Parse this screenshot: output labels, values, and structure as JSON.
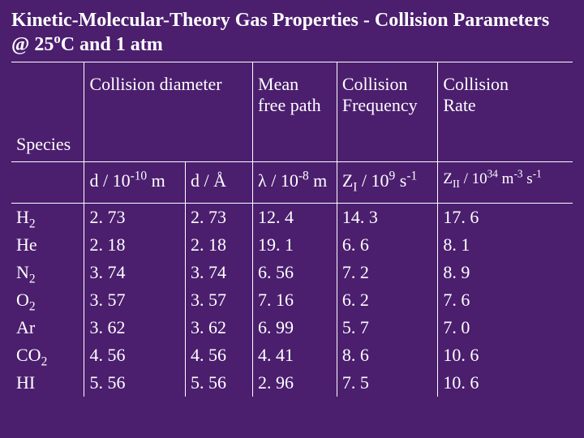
{
  "background_color": "#4b1e6e",
  "text_color": "#ffffff",
  "border_color": "#ffffff",
  "title_line1": "Kinetic-Molecular-Theory Gas Properties - Collision Parameters",
  "title_line2_prefix": "@ 25",
  "title_line2_suffix": "C and 1 atm",
  "headers": {
    "species": "Species",
    "coll_diam": "Collision diameter",
    "mean_free_path_l1": "Mean",
    "mean_free_path_l2": "free path",
    "coll_freq_l1": "Collision",
    "coll_freq_l2": "Frequency",
    "coll_rate_l1": "Collision",
    "coll_rate_l2": "Rate"
  },
  "units": {
    "d_m_prefix": "d / 10",
    "d_m_exp": "-10",
    "d_m_suffix": " m",
    "d_a": "d / Å",
    "lambda": "λ",
    "lambda_mid": " / 10",
    "lambda_exp": "-8",
    "lambda_suffix": " m",
    "zi_prefix": "Z",
    "zi_sub": "I",
    "zi_mid": " / 10",
    "zi_exp": "9",
    "zi_suffix": " s",
    "zi_exp2": "-1",
    "zii_prefix": "Z",
    "zii_sub": "II",
    "zii_mid": " / 10",
    "zii_exp": "34",
    "zii_mid2": " m",
    "zii_exp2": "-3",
    "zii_mid3": " s",
    "zii_exp3": "-1"
  },
  "rows": [
    {
      "species_base": "H",
      "species_sub": "2",
      "d_m": "2. 73",
      "d_a": "2. 73",
      "lambda": "12. 4",
      "zi": "14. 3",
      "zii": "17. 6"
    },
    {
      "species_base": "He",
      "species_sub": "",
      "d_m": "2. 18",
      "d_a": "2. 18",
      "lambda": "19. 1",
      "zi": "6. 6",
      "zii": "8. 1"
    },
    {
      "species_base": "N",
      "species_sub": "2",
      "d_m": "3. 74",
      "d_a": "3. 74",
      "lambda": "6. 56",
      "zi": "7. 2",
      "zii": "8. 9"
    },
    {
      "species_base": "O",
      "species_sub": "2",
      "d_m": "3. 57",
      "d_a": "3. 57",
      "lambda": "7. 16",
      "zi": "6. 2",
      "zii": "7. 6"
    },
    {
      "species_base": "Ar",
      "species_sub": "",
      "d_m": "3. 62",
      "d_a": "3. 62",
      "lambda": "6. 99",
      "zi": "5. 7",
      "zii": "7. 0"
    },
    {
      "species_base": "CO",
      "species_sub": "2",
      "d_m": "4. 56",
      "d_a": "4. 56",
      "lambda": "4. 41",
      "zi": "8. 6",
      "zii": "10. 6"
    },
    {
      "species_base": "HI",
      "species_sub": "",
      "d_m": "5. 56",
      "d_a": "5. 56",
      "lambda": "2. 96",
      "zi": "7. 5",
      "zii": "10. 6"
    }
  ],
  "col_widths": [
    "13%",
    "18%",
    "12%",
    "15%",
    "18%",
    "24%"
  ]
}
